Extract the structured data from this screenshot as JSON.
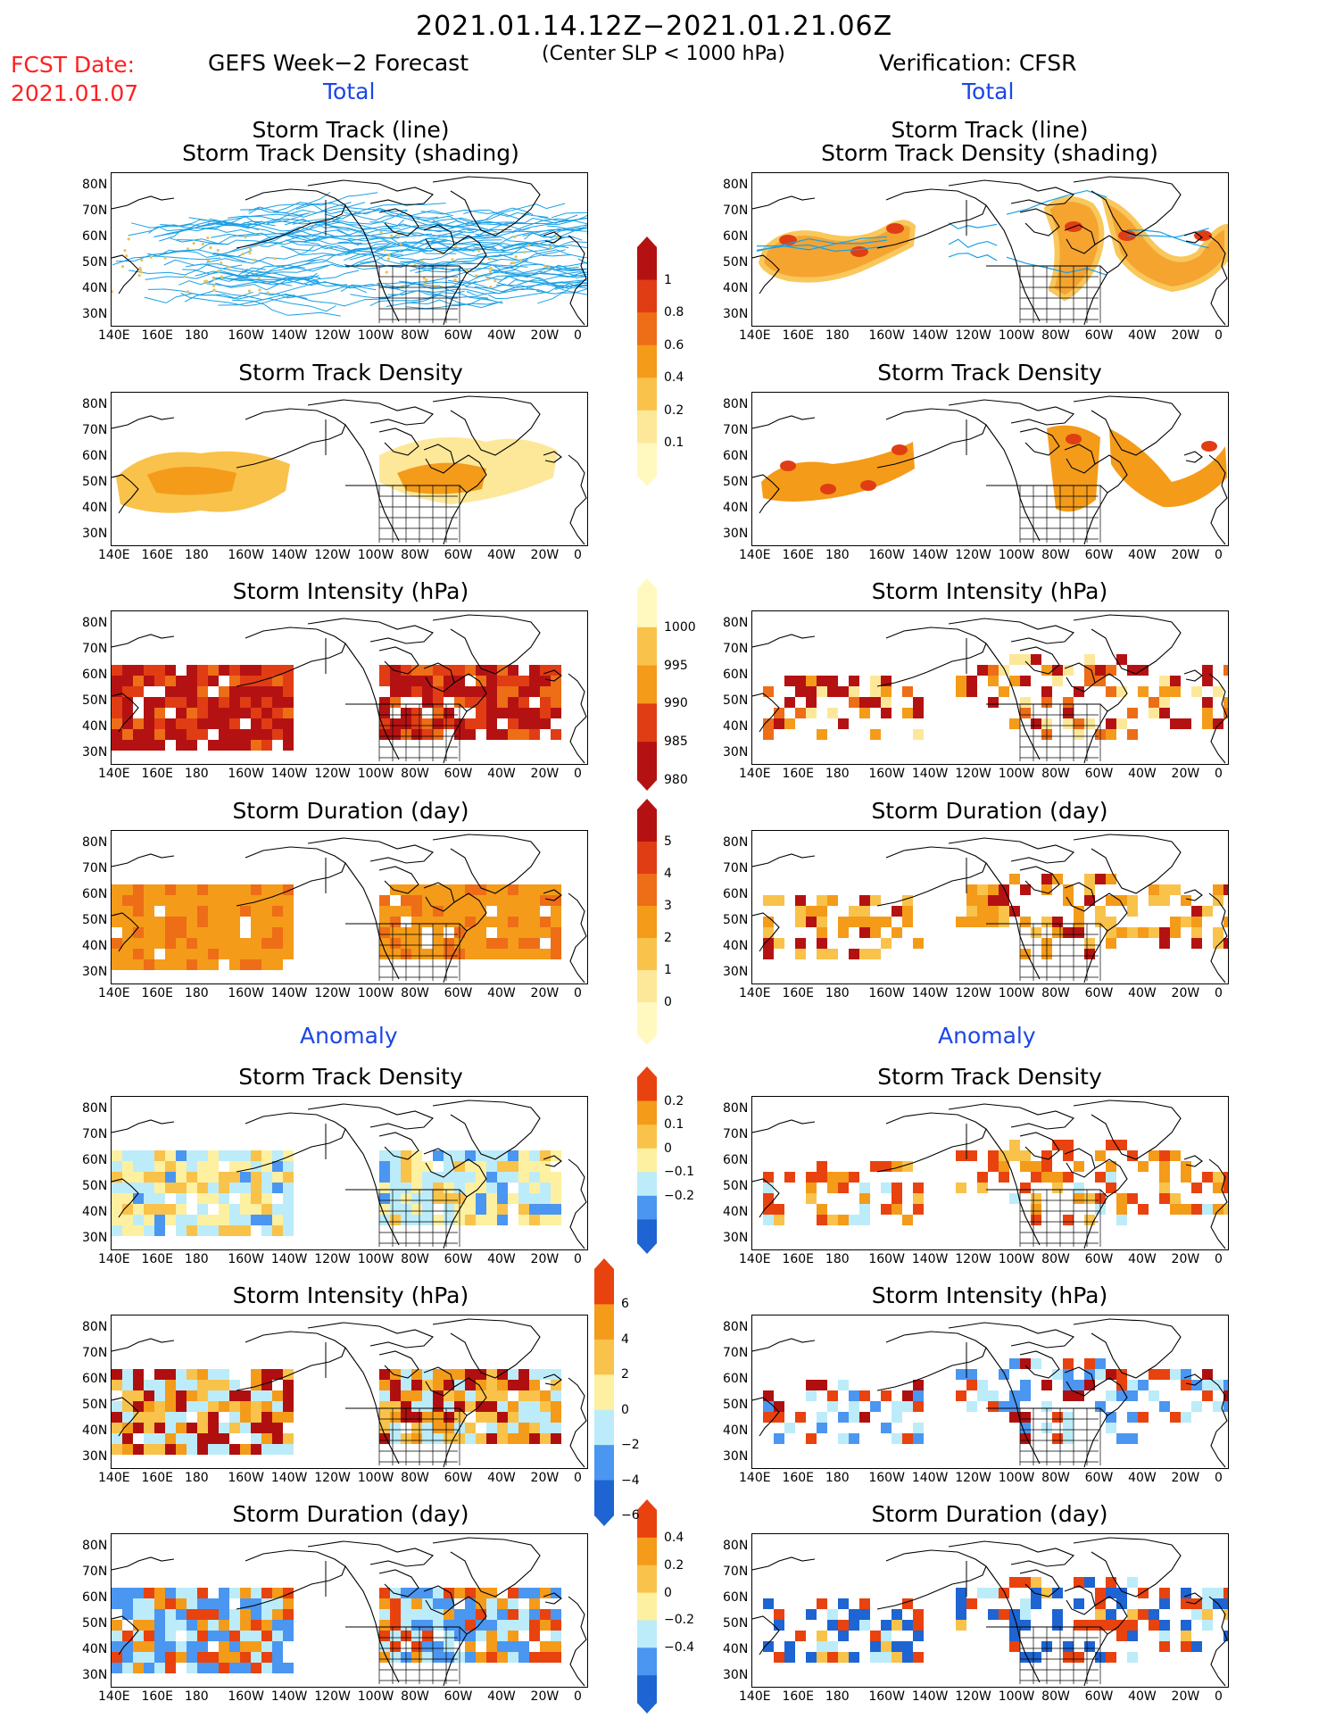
{
  "header": {
    "date_range": "2021.01.14.12Z−2021.01.21.06Z",
    "criteria": "(Center SLP < 1000 hPa)",
    "fcst_label": "FCST Date:",
    "fcst_date": "2021.01.07",
    "left_title": "GEFS Week−2 Forecast",
    "right_title": "Verification: CFSR",
    "total_label": "Total",
    "anomaly_label": "Anomaly"
  },
  "panel_titles": {
    "track_line": "Storm Track (line)",
    "track_shading": "Storm Track Density (shading)",
    "density": "Storm Track Density",
    "intensity": "Storm Intensity (hPa)",
    "duration": "Storm Duration (day)"
  },
  "axes": {
    "lat_labels": [
      "80N",
      "70N",
      "60N",
      "50N",
      "40N",
      "30N"
    ],
    "lon_labels": [
      "140E",
      "160E",
      "180",
      "160W",
      "140W",
      "120W",
      "100W",
      "80W",
      "60W",
      "40W",
      "20W",
      "0"
    ]
  },
  "colorbars": {
    "density_total": [
      "1",
      "0.8",
      "0.6",
      "0.4",
      "0.2",
      "0.1"
    ],
    "intensity_total": [
      "1000",
      "995",
      "990",
      "985",
      "980"
    ],
    "duration_total": [
      "5",
      "4",
      "3",
      "2",
      "1",
      "0"
    ],
    "density_anomaly": [
      "0.2",
      "0.1",
      "0",
      "−0.1",
      "−0.2"
    ],
    "intensity_anomaly": [
      "6",
      "4",
      "2",
      "0",
      "−2",
      "−4",
      "−6"
    ],
    "duration_anomaly": [
      "0.4",
      "0.2",
      "0",
      "−0.2",
      "−0.4"
    ]
  },
  "colors": {
    "title_red": "#ff2020",
    "title_blue": "#1c46e6",
    "track_line": "#19a0e6",
    "total_scale": [
      "#fff9c0",
      "#fde89a",
      "#f9c24a",
      "#f49b1a",
      "#ee6d17",
      "#e03d15",
      "#b41212"
    ],
    "anomaly_scale": [
      "#1e64d2",
      "#4a96f0",
      "#bcecfa",
      "#fdf0a0",
      "#f9c24a",
      "#f49b1a",
      "#e8420f"
    ]
  }
}
